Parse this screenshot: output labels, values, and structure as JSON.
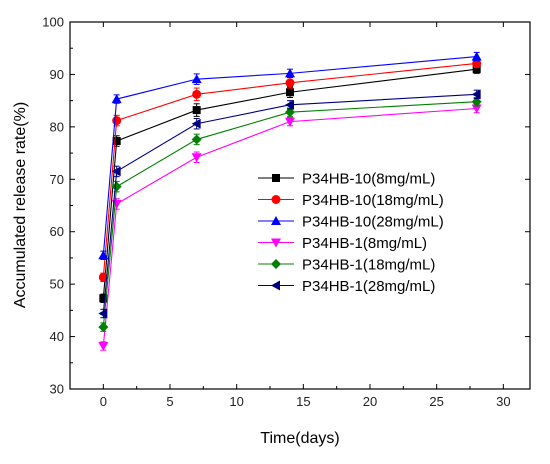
{
  "chart_data": {
    "type": "line",
    "xlabel": "Time(days)",
    "ylabel": "Accumulated release rate(%)",
    "xlim": [
      -2.5,
      32
    ],
    "ylim": [
      30,
      100
    ],
    "xticks": [
      0,
      5,
      10,
      15,
      20,
      25,
      30
    ],
    "yticks": [
      30,
      40,
      50,
      60,
      70,
      80,
      90,
      100
    ],
    "x": [
      0,
      1,
      7,
      14,
      28
    ],
    "legend_position": "center-right",
    "grid": false,
    "error_bars": true,
    "series": [
      {
        "name": "P34HB-10(8mg/mL)",
        "color": "#000000",
        "marker": "square",
        "values": [
          47.3,
          77.3,
          83.2,
          86.6,
          91.0
        ],
        "errors": [
          0.8,
          1.0,
          1.2,
          1.0,
          0.8
        ]
      },
      {
        "name": "P34HB-10(18mg/mL)",
        "color": "#ff0000",
        "marker": "circle",
        "values": [
          51.3,
          81.2,
          86.2,
          88.4,
          92.1
        ],
        "errors": [
          0.8,
          1.0,
          1.2,
          1.0,
          0.8
        ]
      },
      {
        "name": "P34HB-10(28mg/mL)",
        "color": "#0000ff",
        "marker": "triangle-up",
        "values": [
          55.5,
          85.3,
          89.1,
          90.2,
          93.4
        ],
        "errors": [
          0.8,
          0.8,
          1.0,
          0.8,
          0.8
        ]
      },
      {
        "name": "P34HB-1(8mg/mL)",
        "color": "#ff00ff",
        "marker": "triangle-down",
        "values": [
          38.2,
          65.3,
          74.2,
          81.0,
          83.5
        ],
        "errors": [
          0.8,
          1.0,
          1.0,
          0.8,
          0.8
        ]
      },
      {
        "name": "P34HB-1(18mg/mL)",
        "color": "#008000",
        "marker": "diamond",
        "values": [
          41.8,
          68.6,
          77.6,
          82.8,
          84.8
        ],
        "errors": [
          0.8,
          1.0,
          1.0,
          0.8,
          0.8
        ]
      },
      {
        "name": "P34HB-1(28mg/mL)",
        "color": "#000080",
        "marker": "triangle-left",
        "values": [
          44.4,
          71.5,
          80.6,
          84.2,
          86.2
        ],
        "errors": [
          0.8,
          1.0,
          1.0,
          0.8,
          0.8
        ]
      }
    ]
  }
}
